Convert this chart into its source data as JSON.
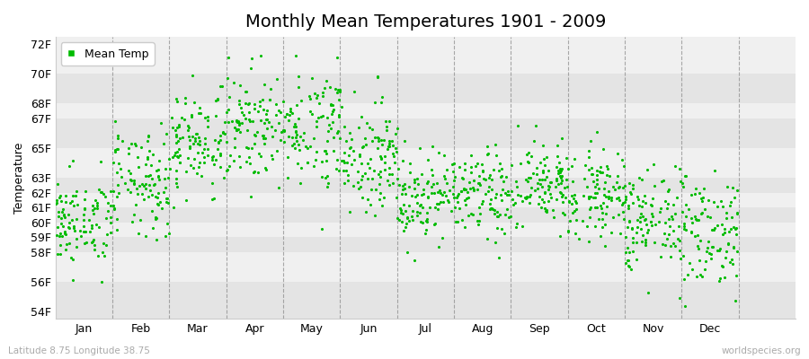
{
  "title": "Monthly Mean Temperatures 1901 - 2009",
  "ylabel": "Temperature",
  "xlabel_labels": [
    "Jan",
    "Feb",
    "Mar",
    "Apr",
    "May",
    "Jun",
    "Jul",
    "Aug",
    "Sep",
    "Oct",
    "Nov",
    "Dec"
  ],
  "ytick_labels": [
    "54F",
    "56F",
    "58F",
    "59F",
    "60F",
    "61F",
    "62F",
    "63F",
    "65F",
    "67F",
    "68F",
    "70F",
    "72F"
  ],
  "ytick_values": [
    54,
    56,
    58,
    59,
    60,
    61,
    62,
    63,
    65,
    67,
    68,
    70,
    72
  ],
  "ylim": [
    53.5,
    72.5
  ],
  "dot_color": "#00bb00",
  "dot_size": 5,
  "background_color": "#ffffff",
  "legend_label": "Mean Temp",
  "subtitle_left": "Latitude 8.75 Longitude 38.75",
  "subtitle_right": "worldspecies.org",
  "title_fontsize": 14,
  "axis_label_fontsize": 9,
  "tick_fontsize": 9,
  "dashed_line_color": "#888888",
  "band_light": "#f0f0f0",
  "band_dark": "#e4e4e4",
  "monthly_means": [
    60.0,
    62.5,
    65.5,
    66.5,
    66.5,
    64.5,
    61.8,
    61.8,
    62.5,
    62.0,
    60.0,
    59.5
  ],
  "monthly_stds": [
    1.5,
    1.8,
    1.8,
    1.8,
    2.0,
    1.8,
    1.5,
    1.5,
    1.5,
    1.5,
    1.8,
    2.0
  ],
  "n_years": 109
}
